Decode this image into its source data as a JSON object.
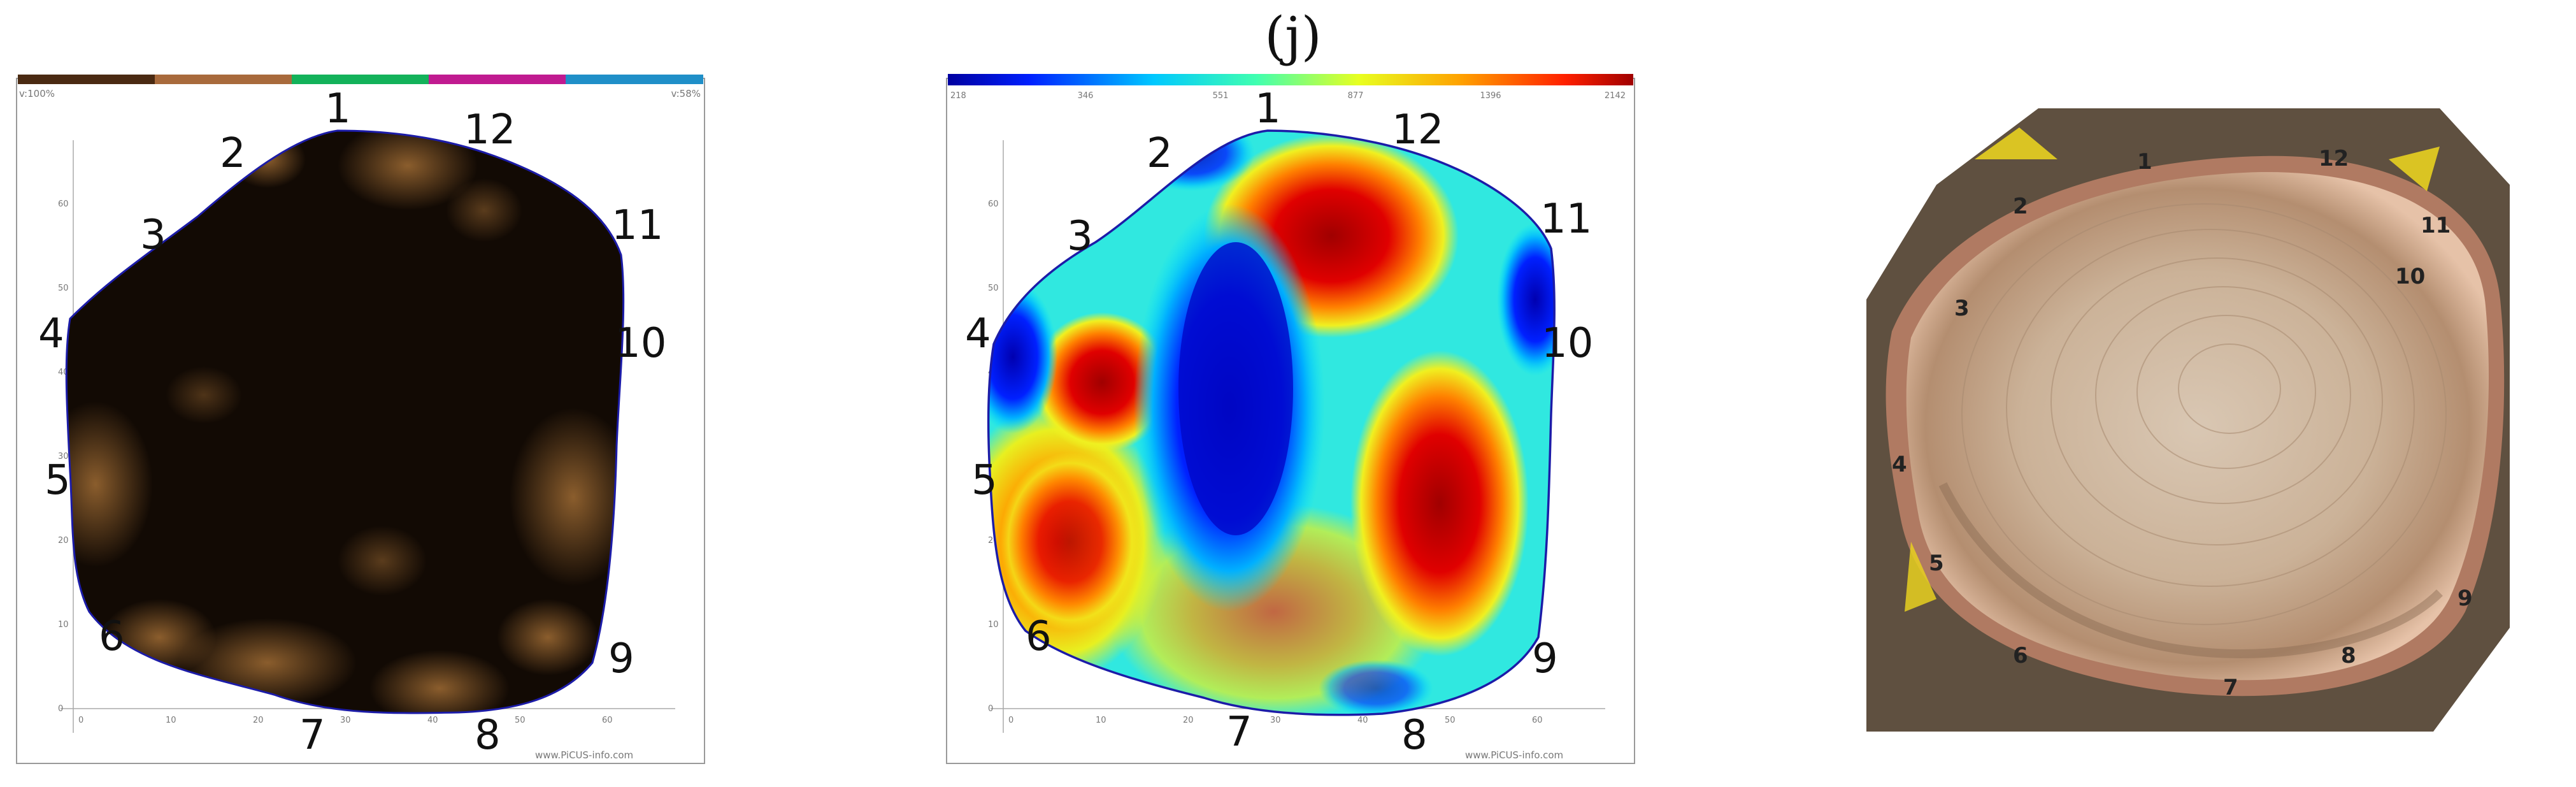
{
  "figure_label": "(j)",
  "point_labels": [
    "1",
    "2",
    "3",
    "4",
    "5",
    "6",
    "7",
    "8",
    "9",
    "10",
    "11",
    "12"
  ],
  "panel_a": {
    "scale_left": "v:100%",
    "scale_right": "v:58%",
    "legend_colors": [
      "#4a2a12",
      "#a86a3c",
      "#13b25a",
      "#c01a90",
      "#1f8fc8"
    ],
    "watermark": "www.PiCUS-info.com"
  },
  "panel_b": {
    "colorbar_ticks": [
      "218",
      "346",
      "551",
      "877",
      "1396",
      "2142"
    ],
    "watermark": "www.PiCUS-info.com"
  },
  "axis_ticks": {
    "x": [
      "0",
      "10",
      "20",
      "30",
      "40",
      "50",
      "60"
    ],
    "y": [
      "0",
      "10",
      "20",
      "30",
      "40",
      "50",
      "60"
    ]
  },
  "colors": {
    "outline": "#1c1ca8",
    "tomo_dark": "#120a04",
    "tomo_light": "#9a6730",
    "wood": "#e3c3a8",
    "bark": "#c88f76",
    "ground": "#6b5a48"
  }
}
